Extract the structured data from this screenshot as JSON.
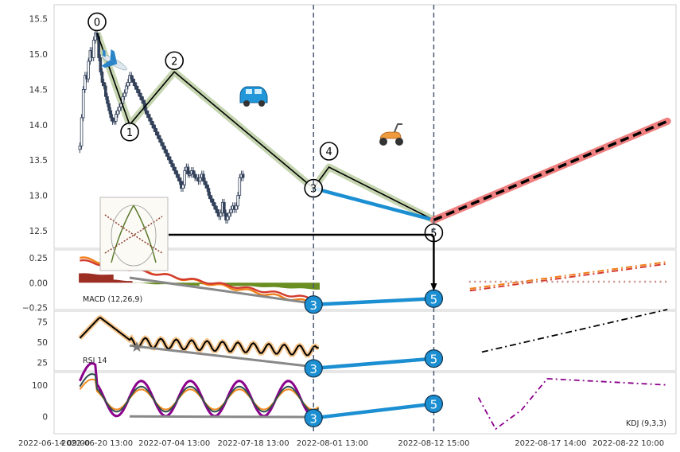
{
  "chart_data": {
    "type": "candlestick",
    "x_ticks": [
      "2022-06-14 09:00",
      "2022-06-20 13:00",
      "2022-07-04 13:00",
      "2022-07-18 13:00",
      "2022-08-01 13:00",
      "2022-08-12 15:00",
      "2022-08-17 14:00",
      "2022-08-22 10:00"
    ],
    "colors": {
      "wave": "#c5d5b0",
      "pivot_line": "#000000",
      "divergence": "#1b8fd2",
      "forecast_glow": "#f08080",
      "macd_dif": "#f07f17",
      "macd_dea": "#d23a2e",
      "macd_hist_pos": "#9c2f24",
      "macd_hist_neg": "#6b8e23",
      "rsi": "#000000",
      "rsi_glow": "#f5c48a",
      "kdj_k": "#2f4f4f",
      "kdj_d": "#f58b1f",
      "kdj_j": "#8b008b",
      "marker": "#1b8fd2",
      "vline": "#4a5a70",
      "gray_link": "#888888"
    },
    "price_panel": {
      "ylim": [
        12.25,
        15.7
      ],
      "yticks": [
        "12.5",
        "13.0",
        "13.5",
        "14.0",
        "14.5",
        "15.0",
        "15.5"
      ],
      "wave_points": [
        {
          "label": "0",
          "x": 13,
          "y": 15.3
        },
        {
          "label": "1",
          "x": 32,
          "y": 14.0
        },
        {
          "label": "2",
          "x": 58,
          "y": 14.75
        },
        {
          "label": "3",
          "x": 139,
          "y": 13.1
        },
        {
          "label": "4",
          "x": 148,
          "y": 13.4
        },
        {
          "label": "5",
          "x": 209,
          "y": 12.65
        }
      ],
      "forecast": {
        "x": [
          209,
          345
        ],
        "y": [
          12.65,
          14.05
        ]
      },
      "divergence_line": {
        "x": [
          139,
          209
        ],
        "y": [
          13.1,
          12.65
        ]
      },
      "candles_close": [
        13.7,
        14.1,
        14.5,
        14.7,
        14.65,
        14.9,
        15.05,
        14.95,
        15.2,
        15.3,
        15.25,
        14.95,
        14.75,
        14.6,
        14.55,
        14.4,
        14.3,
        14.2,
        14.1,
        14.05,
        14.05,
        14.15,
        14.2,
        14.25,
        14.3,
        14.4,
        14.45,
        14.55,
        14.6,
        14.7,
        14.65,
        14.6,
        14.55,
        14.5,
        14.45,
        14.4,
        14.35,
        14.3,
        14.2,
        14.15,
        14.1,
        14.05,
        14.0,
        13.95,
        13.9,
        13.85,
        13.8,
        13.75,
        13.7,
        13.65,
        13.6,
        13.55,
        13.5,
        13.45,
        13.4,
        13.35,
        13.3,
        13.25,
        13.2,
        13.1,
        13.15,
        13.35,
        13.4,
        13.3,
        13.3,
        13.35,
        13.3,
        13.25,
        13.25,
        13.2,
        13.25,
        13.3,
        13.2,
        13.15,
        13.1,
        13.0,
        12.95,
        12.9,
        12.85,
        12.8,
        12.75,
        12.7,
        12.75,
        12.9,
        12.75,
        12.65,
        12.7,
        12.75,
        12.8,
        12.85,
        12.8,
        12.85,
        13.0,
        13.25,
        13.3,
        13.25
      ]
    },
    "macd_panel": {
      "label": "MACD (12,26,9)",
      "ylim": [
        -0.27,
        0.33
      ],
      "yticks": [
        "−0.25",
        "0.00",
        "0.25"
      ],
      "marks": [
        {
          "label": "3",
          "x": 139,
          "y": -0.22
        },
        {
          "label": "5",
          "x": 209,
          "y": -0.16
        }
      ]
    },
    "rsi_panel": {
      "label": "RSI 14",
      "ylim": [
        15,
        88
      ],
      "yticks": [
        "25",
        "50",
        "75"
      ],
      "marks": [
        {
          "label": "3",
          "x": 139,
          "y": 18
        },
        {
          "label": "5",
          "x": 209,
          "y": 30
        }
      ]
    },
    "kdj_panel": {
      "label": "KDJ (9,3,3)",
      "ylim": [
        -55,
        140
      ],
      "yticks": [
        "0",
        "100"
      ],
      "marks": [
        {
          "label": "3",
          "x": 139,
          "y": -5
        },
        {
          "label": "5",
          "x": 209,
          "y": 40
        }
      ]
    },
    "xlim": [
      -12,
      350
    ],
    "vlines_x": [
      139,
      209
    ],
    "icons": [
      "airplane-icon",
      "car-icon",
      "scooter-icon",
      "fern-thumbnail"
    ]
  }
}
